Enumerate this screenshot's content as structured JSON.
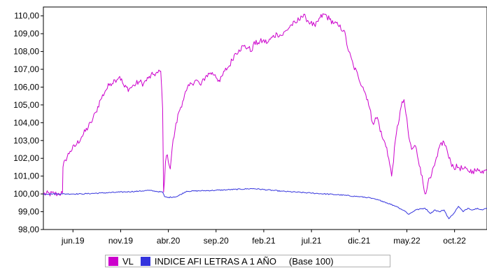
{
  "chart_data": {
    "type": "line",
    "title": "",
    "xlabel": "",
    "ylabel": "",
    "ylim": [
      98,
      110.5
    ],
    "grid": false,
    "legend_position": "bottom",
    "y_ticks": [
      "98,00",
      "99,00",
      "100,00",
      "101,00",
      "102,00",
      "103,00",
      "104,00",
      "105,00",
      "106,00",
      "107,00",
      "108,00",
      "109,00",
      "110,00"
    ],
    "x_ticks": [
      "jun.19",
      "nov.19",
      "abr.20",
      "sep.20",
      "feb.21",
      "jul.21",
      "dic.21",
      "may.22",
      "oct.22"
    ],
    "x_ticks_pos": [
      1.1,
      6.1,
      11.1,
      16.1,
      21.1,
      26.1,
      31.1,
      36.1,
      41.1
    ],
    "xlim": [
      -2.0,
      44.5
    ],
    "legend_note": "(Base 100)",
    "series": [
      {
        "name": "VL",
        "color": "#cc00cc",
        "x": [
          -2.0,
          -0.5,
          0.0,
          0.05,
          0.3,
          0.8,
          1.5,
          2.0,
          3.0,
          3.5,
          4.0,
          4.5,
          5.0,
          5.5,
          6.0,
          6.5,
          7.0,
          7.5,
          8.0,
          8.5,
          9.0,
          9.5,
          10.0,
          10.3,
          10.5,
          10.6,
          10.8,
          11.0,
          11.3,
          11.5,
          11.8,
          12.2,
          12.6,
          13.0,
          13.5,
          14.0,
          14.5,
          15.0,
          15.5,
          16.0,
          16.5,
          17.0,
          17.5,
          18.0,
          18.5,
          19.0,
          19.5,
          19.8,
          20.0,
          20.5,
          21.0,
          21.5,
          22.0,
          22.5,
          23.0,
          23.5,
          24.0,
          24.5,
          25.0,
          25.5,
          26.0,
          26.5,
          27.0,
          27.5,
          28.0,
          28.5,
          29.0,
          29.5,
          30.0,
          30.5,
          31.0,
          31.5,
          32.0,
          32.5,
          33.0,
          33.5,
          34.0,
          34.5,
          35.0,
          35.5,
          35.8,
          36.0,
          36.3,
          36.6,
          37.0,
          37.5,
          38.0,
          38.3,
          38.6,
          39.0,
          39.3,
          39.6,
          40.0,
          40.3,
          40.5,
          41.0,
          41.5,
          42.0,
          42.5,
          43.0,
          43.3,
          43.6,
          44.0,
          44.5
        ],
        "values": [
          100.0,
          100.0,
          100.05,
          101.5,
          101.9,
          102.4,
          102.8,
          103.2,
          104.0,
          104.6,
          105.3,
          105.8,
          106.2,
          106.4,
          106.6,
          106.0,
          105.9,
          106.1,
          106.3,
          106.2,
          106.5,
          106.7,
          106.8,
          106.9,
          104.8,
          100.1,
          101.8,
          102.2,
          101.4,
          102.6,
          103.6,
          104.6,
          105.2,
          105.8,
          106.2,
          106.4,
          106.1,
          106.6,
          106.8,
          106.7,
          106.3,
          106.9,
          107.2,
          107.8,
          108.1,
          108.3,
          108.2,
          108.0,
          108.4,
          108.5,
          108.6,
          108.5,
          108.8,
          109.0,
          108.9,
          109.2,
          109.5,
          109.6,
          110.0,
          109.9,
          109.6,
          109.4,
          109.9,
          110.1,
          109.8,
          109.6,
          109.4,
          109.2,
          108.0,
          107.2,
          106.6,
          106.0,
          105.3,
          104.0,
          104.3,
          103.2,
          102.6,
          101.0,
          103.4,
          104.9,
          105.3,
          104.5,
          103.2,
          102.5,
          102.7,
          101.5,
          100.0,
          100.6,
          100.9,
          101.6,
          102.1,
          102.8,
          102.9,
          102.5,
          102.0,
          101.5,
          101.5,
          101.4,
          101.3,
          101.3,
          101.3,
          101.3,
          101.3,
          101.3
        ]
      },
      {
        "name": "INDICE AFI LETRAS A 1 AÑO",
        "color": "#3333dd",
        "x": [
          -2.0,
          0.0,
          2.0,
          4.0,
          6.0,
          8.0,
          9.0,
          10.5,
          10.7,
          11.0,
          12.0,
          13.0,
          16.0,
          20.0,
          23.0,
          26.0,
          29.0,
          32.0,
          33.5,
          35.0,
          36.0,
          36.3,
          37.0,
          38.0,
          38.6,
          39.0,
          39.5,
          40.0,
          40.5,
          41.0,
          41.5,
          42.0,
          42.5,
          43.0,
          43.5,
          44.0,
          44.5
        ],
        "values": [
          100.0,
          100.0,
          100.0,
          100.05,
          100.1,
          100.15,
          100.2,
          100.1,
          99.85,
          99.8,
          99.85,
          100.15,
          100.2,
          100.3,
          100.15,
          100.05,
          99.95,
          99.8,
          99.6,
          99.3,
          99.0,
          98.85,
          99.1,
          99.2,
          98.9,
          99.1,
          99.0,
          99.1,
          98.6,
          98.9,
          99.3,
          99.0,
          99.2,
          99.1,
          99.2,
          99.1,
          99.2
        ]
      }
    ]
  }
}
